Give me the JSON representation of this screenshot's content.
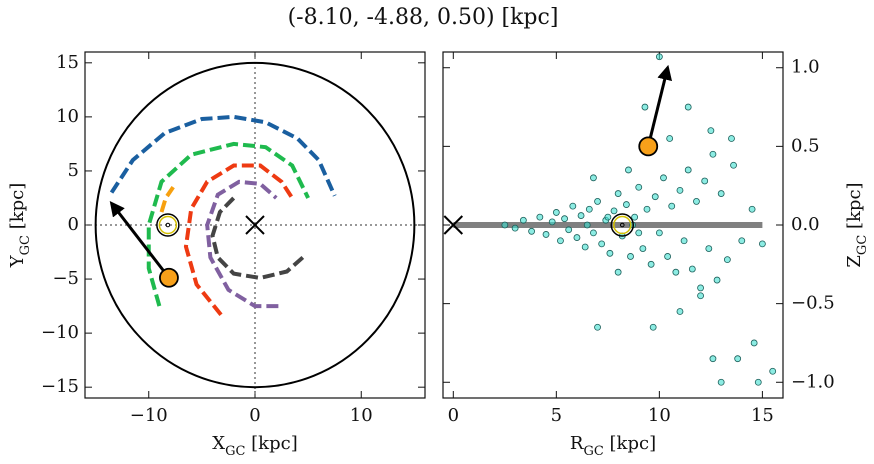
{
  "title": "(-8.10, -4.88, 0.50) [kpc]",
  "chart_data": [
    {
      "type": "line",
      "xlabel": [
        "X",
        "GC",
        " [kpc]"
      ],
      "ylabel": [
        "Y",
        "GC",
        " [kpc]"
      ],
      "xlim": [
        -16,
        16
      ],
      "ylim": [
        -16,
        16
      ],
      "xticks": [
        {
          "value": -10,
          "label": "−10"
        },
        0,
        10
      ],
      "yticks": [
        {
          "value": -15,
          "label": "−15"
        },
        {
          "value": -10,
          "label": "−10"
        },
        {
          "value": -5,
          "label": "−5"
        },
        0,
        5,
        10,
        15
      ],
      "zero_lines": true,
      "circle_radius": 15,
      "series": [
        {
          "color": "#1a5fa0",
          "x": [
            -13.5,
            -11.5,
            -8.5,
            -5,
            -2,
            1,
            4,
            6,
            7.5
          ],
          "y": [
            3,
            6,
            8.5,
            9.8,
            10,
            9.5,
            8,
            6,
            2.7
          ]
        },
        {
          "color": "#1fba4e",
          "x": [
            -9,
            -10,
            -10,
            -8.8,
            -6,
            -2,
            1,
            3.5,
            5
          ],
          "y": [
            -7.5,
            -4,
            0,
            4,
            6.5,
            7.5,
            7.2,
            5.5,
            2.5
          ]
        },
        {
          "color": "#ee3a12",
          "x": [
            -3.2,
            -5.5,
            -6.5,
            -6,
            -4.5,
            -2,
            0.5,
            2.5,
            3.5
          ],
          "y": [
            -8.3,
            -5.5,
            -2,
            1.5,
            4,
            5.5,
            5.5,
            4,
            2.5
          ]
        },
        {
          "color": "#8060a0",
          "x": [
            2.2,
            0,
            -2.5,
            -4.2,
            -4.5,
            -3.5,
            -1.5,
            0.5,
            2
          ],
          "y": [
            -7.5,
            -7.5,
            -6,
            -3,
            0,
            2.8,
            4,
            3.8,
            2.5
          ]
        },
        {
          "color": "#444444",
          "x": [
            4.5,
            3,
            0.5,
            -2,
            -3.5,
            -4,
            -3.3,
            -2
          ],
          "y": [
            -3,
            -4.3,
            -4.9,
            -4.5,
            -3,
            -1,
            1.2,
            2.5
          ]
        },
        {
          "color": "#f7a00f",
          "x": [
            -8.8,
            -8.4,
            -7.7
          ],
          "y": [
            1.2,
            2.5,
            3.5
          ]
        }
      ],
      "sun": {
        "x": -8.2,
        "y": 0
      },
      "point": {
        "x": -8.1,
        "y": -4.88,
        "color": "#f7a01a"
      },
      "arrow": {
        "x": [
          -8.1,
          -13.5
        ],
        "y": [
          -4.88,
          2.0
        ]
      },
      "center": {
        "x": 0,
        "y": 0
      }
    },
    {
      "type": "scatter",
      "yaxis_side": "right",
      "xlabel": [
        "R",
        "GC",
        " [kpc]"
      ],
      "ylabel": [
        "Z",
        "GC",
        " [kpc]"
      ],
      "xlim": [
        -0.5,
        16
      ],
      "ylim": [
        -1.1,
        1.1
      ],
      "xticks": [
        0,
        5,
        10,
        15
      ],
      "yticks": [
        {
          "value": -1.0,
          "label": "−1.0"
        },
        {
          "value": -0.5,
          "label": "−0.5"
        },
        {
          "value": 0.0,
          "label": "0.0"
        },
        {
          "value": 0.5,
          "label": "0.5"
        },
        {
          "value": 1.0,
          "label": "1.0"
        }
      ],
      "color": "#40e0d0",
      "edge_color": "#1d5f5a",
      "x": [
        3.0,
        3.4,
        3.8,
        4.2,
        4.5,
        4.8,
        5.0,
        5.2,
        5.4,
        5.6,
        5.8,
        6.0,
        6.2,
        6.4,
        6.6,
        6.8,
        7.0,
        7.2,
        7.4,
        7.6,
        7.8,
        8.0,
        8.2,
        8.4,
        8.6,
        8.8,
        9.0,
        9.2,
        9.4,
        9.6,
        9.8,
        10.0,
        10.2,
        10.4,
        10.6,
        10.8,
        11.0,
        11.2,
        11.4,
        11.6,
        11.8,
        12.0,
        12.2,
        12.4,
        12.6,
        12.8,
        13.0,
        13.3,
        13.6,
        14.0,
        14.5,
        15.0,
        9.3,
        10.0,
        12.6,
        13.8,
        14.6,
        13.0,
        7.0,
        9.7,
        11.4,
        12.5,
        6.8,
        12.0,
        13.5,
        11.0,
        10.5,
        8.5,
        8.0,
        14.8,
        15.5,
        2.5,
        9.0,
        7.5,
        8.7,
        6.5
      ],
      "y": [
        -0.02,
        0.03,
        -0.04,
        0.05,
        -0.06,
        0.02,
        0.08,
        -0.1,
        0.04,
        -0.03,
        0.12,
        -0.08,
        0.06,
        -0.14,
        0.1,
        -0.05,
        0.15,
        -0.12,
        0.03,
        -0.18,
        0.09,
        0.2,
        -0.07,
        0.13,
        -0.2,
        0.05,
        0.24,
        -0.15,
        0.1,
        -0.25,
        0.18,
        -0.05,
        0.3,
        -0.2,
        0.12,
        -0.3,
        0.22,
        -0.1,
        0.35,
        -0.28,
        0.15,
        -0.4,
        0.28,
        -0.15,
        0.45,
        -0.35,
        0.2,
        -0.22,
        0.38,
        -0.1,
        0.1,
        -0.12,
        0.75,
        1.07,
        -0.85,
        -0.85,
        -0.75,
        -1.0,
        -0.65,
        -0.65,
        0.75,
        0.6,
        0.3,
        -0.45,
        0.55,
        -0.55,
        0.55,
        0.35,
        -0.3,
        -1.0,
        -0.93,
        0.0,
        -0.05,
        0.05,
        0.0,
        0.0
      ],
      "disk_line": {
        "x": [
          0,
          15
        ],
        "y": [
          0,
          0
        ]
      },
      "sun": {
        "x": 8.2,
        "y": 0
      },
      "point": {
        "x": 9.46,
        "y": 0.5,
        "color": "#f7a01a"
      },
      "arrow": {
        "x": [
          9.46,
          10.4
        ],
        "y": [
          0.5,
          1.0
        ]
      },
      "center": {
        "x": 0,
        "y": 0
      }
    }
  ]
}
